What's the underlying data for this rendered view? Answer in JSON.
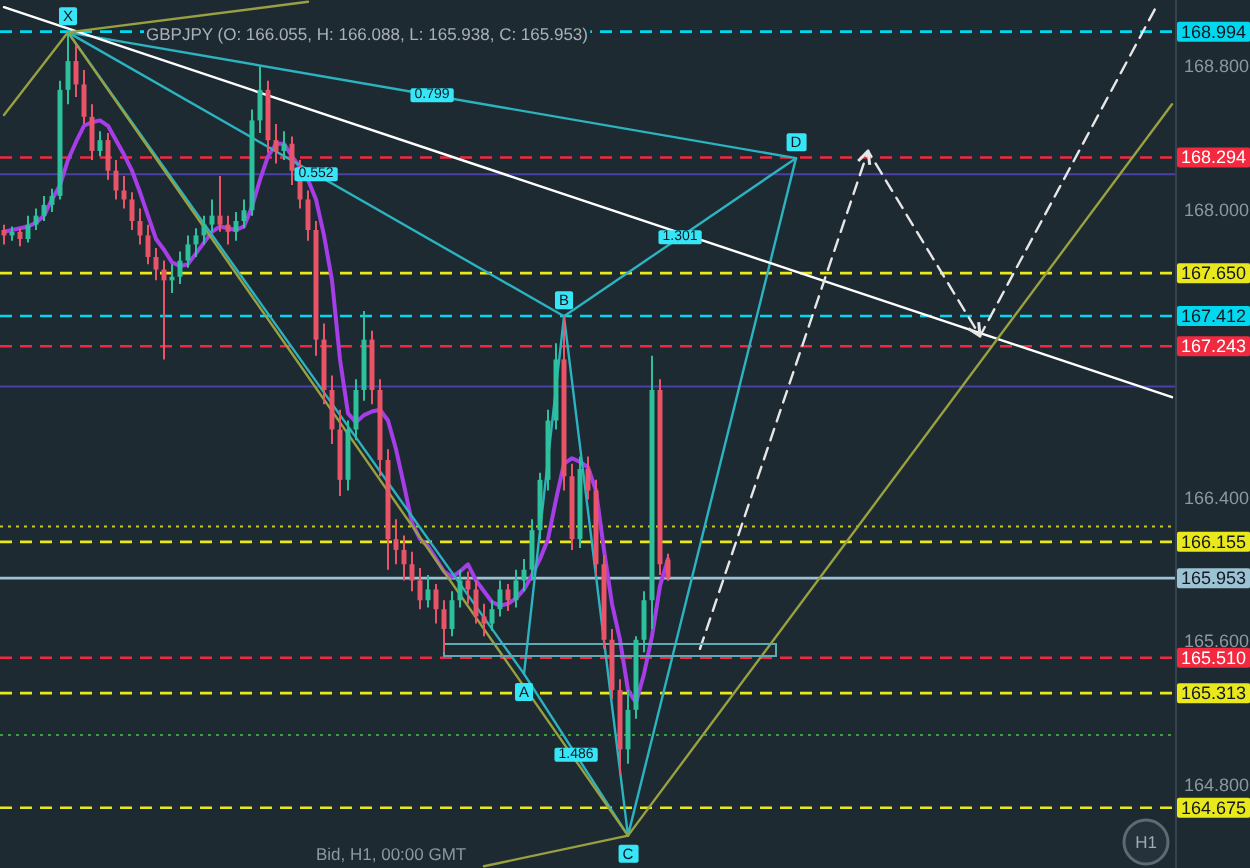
{
  "chart_data": {
    "type": "candlestick",
    "title": "GBPJPY (O: 166.055, H: 166.088, L: 165.938, C: 165.953)",
    "categories": [
      null,
      null,
      null,
      null,
      null,
      null,
      null,
      null,
      null,
      null,
      null,
      null,
      null,
      null,
      null,
      null,
      null,
      null,
      null,
      null,
      null,
      null,
      null,
      null,
      null,
      null,
      null,
      null,
      null,
      null,
      null,
      null,
      null,
      null,
      null,
      null,
      null,
      null,
      null,
      null,
      null,
      null,
      null,
      null,
      null,
      null,
      null,
      null,
      null,
      null,
      null,
      null,
      null,
      null,
      null,
      null,
      null,
      null,
      null,
      null,
      null,
      null,
      null,
      null,
      null,
      null,
      null,
      null,
      null,
      null,
      null,
      null,
      null,
      null,
      null,
      null,
      null,
      null,
      null,
      null,
      null,
      null,
      null,
      null,
      null,
      null,
      null,
      null,
      null,
      null,
      null,
      null,
      null,
      null,
      null,
      null,
      null,
      null,
      null,
      null,
      null,
      null,
      null,
      null,
      null,
      null,
      null,
      null,
      null,
      null,
      null,
      null,
      null,
      null,
      null,
      null,
      null,
      null,
      null,
      null,
      null,
      null,
      null,
      null,
      null,
      null,
      null,
      null,
      null,
      null,
      null,
      null,
      null,
      null,
      null,
      null,
      null,
      null,
      null,
      null,
      null,
      null,
      null,
      null,
      null,
      null,
      null
    ],
    "ohlc": [
      [
        167.89,
        167.92,
        167.81,
        167.86
      ],
      [
        167.86,
        167.91,
        167.83,
        167.88
      ],
      [
        167.88,
        167.9,
        167.8,
        167.84
      ],
      [
        167.84,
        167.97,
        167.82,
        167.92
      ],
      [
        167.92,
        168.01,
        167.89,
        167.97
      ],
      [
        167.97,
        168.08,
        167.94,
        168.03
      ],
      [
        168.03,
        168.12,
        167.99,
        168.08
      ],
      [
        168.08,
        168.72,
        168.06,
        168.67
      ],
      [
        168.67,
        168.99,
        168.59,
        168.83
      ],
      [
        168.83,
        168.92,
        168.63,
        168.7
      ],
      [
        168.7,
        168.78,
        168.48,
        168.52
      ],
      [
        168.52,
        168.59,
        168.28,
        168.33
      ],
      [
        168.33,
        168.44,
        168.3,
        168.39
      ],
      [
        168.39,
        168.43,
        168.17,
        168.22
      ],
      [
        168.22,
        168.28,
        168.06,
        168.11
      ],
      [
        168.11,
        168.19,
        168.01,
        168.06
      ],
      [
        168.06,
        168.1,
        167.89,
        167.94
      ],
      [
        167.94,
        168.01,
        167.81,
        167.86
      ],
      [
        167.86,
        167.92,
        167.7,
        167.74
      ],
      [
        167.74,
        167.79,
        167.61,
        167.67
      ],
      [
        167.67,
        167.72,
        167.17,
        167.61
      ],
      [
        167.61,
        167.7,
        167.54,
        167.63
      ],
      [
        167.63,
        167.77,
        167.59,
        167.72
      ],
      [
        167.72,
        167.86,
        167.68,
        167.81
      ],
      [
        167.81,
        167.9,
        167.74,
        167.86
      ],
      [
        167.86,
        167.97,
        167.81,
        167.92
      ],
      [
        167.92,
        168.06,
        167.88,
        167.97
      ],
      [
        167.97,
        168.19,
        167.88,
        167.92
      ],
      [
        167.92,
        167.97,
        167.81,
        167.88
      ],
      [
        167.88,
        167.99,
        167.83,
        167.94
      ],
      [
        167.94,
        168.06,
        167.9,
        168.0
      ],
      [
        168.0,
        168.56,
        167.97,
        168.5
      ],
      [
        168.5,
        168.8,
        168.43,
        168.67
      ],
      [
        168.67,
        168.72,
        168.32,
        168.39
      ],
      [
        168.39,
        168.48,
        168.26,
        168.33
      ],
      [
        168.33,
        168.44,
        168.28,
        168.37
      ],
      [
        168.37,
        168.41,
        168.14,
        168.22
      ],
      [
        168.22,
        168.28,
        168.01,
        168.06
      ],
      [
        168.06,
        168.11,
        167.83,
        167.89
      ],
      [
        167.89,
        167.94,
        167.19,
        167.28
      ],
      [
        167.28,
        167.37,
        166.92,
        167.0
      ],
      [
        167.0,
        167.08,
        166.7,
        166.78
      ],
      [
        166.78,
        166.89,
        166.41,
        166.5
      ],
      [
        166.5,
        166.83,
        166.44,
        166.78
      ],
      [
        166.78,
        167.06,
        166.72,
        167.0
      ],
      [
        167.0,
        167.44,
        166.94,
        167.28
      ],
      [
        167.28,
        167.33,
        166.92,
        167.0
      ],
      [
        167.0,
        167.06,
        166.52,
        166.61
      ],
      [
        166.61,
        166.67,
        166.0,
        166.17
      ],
      [
        166.17,
        166.28,
        166.03,
        166.11
      ],
      [
        166.11,
        166.19,
        165.94,
        166.03
      ],
      [
        166.03,
        166.1,
        165.88,
        165.94
      ],
      [
        165.94,
        166.01,
        165.78,
        165.83
      ],
      [
        165.83,
        165.97,
        165.79,
        165.89
      ],
      [
        165.89,
        165.92,
        165.7,
        165.78
      ],
      [
        165.78,
        165.83,
        165.54,
        165.67
      ],
      [
        165.67,
        165.88,
        165.63,
        165.83
      ],
      [
        165.83,
        166.0,
        165.79,
        165.94
      ],
      [
        165.94,
        165.99,
        165.81,
        165.89
      ],
      [
        165.89,
        165.94,
        165.7,
        165.74
      ],
      [
        165.74,
        165.81,
        165.63,
        165.7
      ],
      [
        165.7,
        165.83,
        165.66,
        165.78
      ],
      [
        165.78,
        165.94,
        165.74,
        165.89
      ],
      [
        165.89,
        165.92,
        165.77,
        165.83
      ],
      [
        165.83,
        166.0,
        165.79,
        165.94
      ],
      [
        165.94,
        166.06,
        165.88,
        166.0
      ],
      [
        166.0,
        166.28,
        165.94,
        166.22
      ],
      [
        166.22,
        166.54,
        166.17,
        166.5
      ],
      [
        166.5,
        166.89,
        166.44,
        166.83
      ],
      [
        166.83,
        167.26,
        166.78,
        167.17
      ],
      [
        167.17,
        167.41,
        166.44,
        166.52
      ],
      [
        166.52,
        166.59,
        166.11,
        166.17
      ],
      [
        166.17,
        166.63,
        166.12,
        166.56
      ],
      [
        166.56,
        166.63,
        166.39,
        166.44
      ],
      [
        166.44,
        166.5,
        165.97,
        166.03
      ],
      [
        166.03,
        166.08,
        165.56,
        165.61
      ],
      [
        165.61,
        165.67,
        165.28,
        165.33
      ],
      [
        165.33,
        165.39,
        164.86,
        165.0
      ],
      [
        165.0,
        165.33,
        164.92,
        165.22
      ],
      [
        165.22,
        165.63,
        165.17,
        165.61
      ],
      [
        165.61,
        165.88,
        165.54,
        165.83
      ],
      [
        165.83,
        167.19,
        165.67,
        167.0
      ],
      [
        167.0,
        167.06,
        165.97,
        166.03
      ],
      [
        166.055,
        166.088,
        165.938,
        165.953
      ],
      null,
      null,
      null,
      null,
      null,
      null,
      null,
      null,
      null,
      null,
      null,
      null,
      null,
      null,
      null,
      null,
      null,
      null,
      null,
      null,
      null,
      null,
      null,
      null,
      null,
      null,
      null,
      null,
      null,
      null,
      null,
      null,
      null,
      null,
      null,
      null,
      null,
      null,
      null,
      null,
      null,
      null,
      null,
      null,
      null,
      null,
      null,
      null,
      null,
      null,
      null,
      null,
      null,
      null,
      null,
      null,
      null,
      null,
      null,
      null,
      null,
      null,
      null
    ],
    "series": [
      {
        "type": "line",
        "color": "#a63ee8",
        "values": [
          167.88,
          167.89,
          167.9,
          167.91,
          167.93,
          167.97,
          168.06,
          168.14,
          168.28,
          168.38,
          168.47,
          168.49,
          168.5,
          168.47,
          168.39,
          168.31,
          168.22,
          168.1,
          167.97,
          167.84,
          167.78,
          167.71,
          167.69,
          167.7,
          167.76,
          167.82,
          167.88,
          167.91,
          167.9,
          167.89,
          167.91,
          168.02,
          168.17,
          168.3,
          168.37,
          168.37,
          168.3,
          168.24,
          168.17,
          168.06,
          167.86,
          167.61,
          167.17,
          166.87,
          166.82,
          166.86,
          166.88,
          166.89,
          166.83,
          166.67,
          166.47,
          166.26,
          166.17,
          166.13,
          166.06,
          165.99,
          165.96,
          165.99,
          166.03,
          165.94,
          165.88,
          165.82,
          165.8,
          165.81,
          165.84,
          165.89,
          165.97,
          166.06,
          166.17,
          166.39,
          166.59,
          166.62,
          166.6,
          166.57,
          166.44,
          166.11,
          165.81,
          165.61,
          165.33,
          165.26,
          165.42,
          165.63,
          165.91,
          166.06,
          null,
          null,
          null,
          null,
          null,
          null,
          null,
          null,
          null,
          null,
          null,
          null,
          null,
          null,
          null,
          null,
          null,
          null,
          null,
          null,
          null,
          null,
          null,
          null,
          null,
          null,
          null,
          null,
          null,
          null,
          null,
          null,
          null,
          null,
          null,
          null,
          null,
          null,
          null,
          null,
          null,
          null,
          null,
          null,
          null,
          null,
          null,
          null,
          null,
          null,
          null,
          null,
          null,
          null,
          null,
          null,
          null,
          null,
          null,
          null,
          null,
          null,
          null
        ]
      },
      {
        "type": "line",
        "color": "#2bb3c0",
        "values": [
          null,
          null,
          null,
          null,
          null,
          null,
          null,
          null,
          168.99,
          null,
          null,
          null,
          null,
          null,
          null,
          null,
          null,
          null,
          null,
          null,
          null,
          null,
          null,
          null,
          null,
          null,
          null,
          null,
          null,
          null,
          null,
          null,
          null,
          null,
          null,
          null,
          null,
          null,
          null,
          null,
          null,
          null,
          null,
          null,
          null,
          null,
          null,
          null,
          null,
          null,
          null,
          null,
          null,
          null,
          null,
          null,
          null,
          null,
          null,
          null,
          null,
          null,
          null,
          null,
          null,
          165.42,
          null,
          null,
          null,
          null,
          167.41,
          null,
          null,
          null,
          null,
          null,
          null,
          null,
          164.52,
          null,
          null,
          null,
          null,
          null,
          null,
          null,
          null,
          null,
          null,
          null,
          null,
          null,
          null,
          null,
          null,
          null,
          null,
          null,
          null,
          168.29,
          null,
          null,
          null,
          null,
          null,
          null,
          null,
          null,
          null,
          null,
          null,
          null,
          null,
          null,
          null,
          null,
          null,
          null,
          null,
          null,
          null,
          null,
          null,
          null,
          null,
          null,
          null,
          null,
          null,
          null,
          null,
          null,
          null,
          null,
          null,
          null,
          null,
          null,
          null,
          null,
          null,
          null,
          null,
          null,
          null,
          null,
          null
        ]
      },
      {
        "type": "line",
        "color": "#2bb3c0",
        "values": [
          null,
          null,
          null,
          null,
          null,
          null,
          null,
          null,
          168.99,
          null,
          null,
          null,
          null,
          null,
          null,
          null,
          null,
          null,
          null,
          null,
          null,
          null,
          null,
          null,
          null,
          null,
          null,
          null,
          null,
          null,
          null,
          null,
          null,
          null,
          null,
          null,
          null,
          null,
          null,
          null,
          null,
          null,
          null,
          null,
          null,
          null,
          null,
          null,
          null,
          null,
          null,
          null,
          null,
          null,
          null,
          null,
          null,
          null,
          null,
          null,
          null,
          null,
          null,
          null,
          null,
          null,
          null,
          null,
          null,
          null,
          167.41,
          null,
          null,
          null,
          null,
          null,
          null,
          null,
          null,
          null,
          null,
          null,
          null,
          null,
          null,
          null,
          null,
          null,
          null,
          null,
          null,
          null,
          null,
          null,
          null,
          null,
          null,
          null,
          null,
          168.29,
          null,
          null,
          null,
          null,
          null,
          null,
          null,
          null,
          null,
          null,
          null,
          null,
          null,
          null,
          null,
          null,
          null,
          null,
          null,
          null,
          null,
          null,
          null,
          null,
          null,
          null,
          null,
          null,
          null,
          null,
          null,
          null,
          null,
          null,
          null,
          null,
          null,
          null,
          null,
          null,
          null,
          null,
          null,
          null,
          null,
          null,
          null
        ]
      },
      {
        "type": "line",
        "color": "#2bb3c0",
        "values": [
          null,
          null,
          null,
          null,
          null,
          null,
          null,
          null,
          168.99,
          null,
          null,
          null,
          null,
          null,
          null,
          null,
          null,
          null,
          null,
          null,
          null,
          null,
          null,
          null,
          null,
          null,
          null,
          null,
          null,
          null,
          null,
          null,
          null,
          null,
          null,
          null,
          null,
          null,
          null,
          null,
          null,
          null,
          null,
          null,
          null,
          null,
          null,
          null,
          null,
          null,
          null,
          null,
          null,
          null,
          null,
          null,
          null,
          null,
          null,
          null,
          null,
          null,
          null,
          null,
          null,
          null,
          null,
          null,
          null,
          null,
          null,
          null,
          null,
          null,
          null,
          null,
          null,
          null,
          null,
          null,
          null,
          null,
          null,
          null,
          null,
          null,
          null,
          null,
          null,
          null,
          null,
          null,
          null,
          null,
          null,
          null,
          null,
          null,
          null,
          168.29,
          null,
          null,
          null,
          null,
          null,
          null,
          null,
          null,
          null,
          null,
          null,
          null,
          null,
          null,
          null,
          null,
          null,
          null,
          null,
          null,
          null,
          null,
          null,
          null,
          null,
          null,
          null,
          null,
          null,
          null,
          null,
          null,
          null,
          null,
          null,
          null,
          null,
          null,
          null,
          null,
          null,
          null,
          null,
          null,
          null,
          null,
          null
        ]
      },
      {
        "type": "line",
        "color": "#2bb3c0",
        "values": [
          null,
          null,
          null,
          null,
          null,
          null,
          null,
          null,
          null,
          null,
          null,
          null,
          null,
          null,
          null,
          null,
          null,
          null,
          null,
          null,
          null,
          null,
          null,
          null,
          null,
          null,
          null,
          null,
          null,
          null,
          null,
          null,
          null,
          null,
          null,
          null,
          null,
          null,
          null,
          null,
          null,
          null,
          null,
          null,
          null,
          null,
          null,
          null,
          null,
          null,
          null,
          null,
          null,
          null,
          null,
          null,
          null,
          null,
          null,
          null,
          null,
          null,
          null,
          null,
          null,
          165.42,
          null,
          null,
          null,
          null,
          null,
          null,
          null,
          null,
          null,
          null,
          null,
          null,
          164.52,
          null,
          null,
          null,
          null,
          null,
          null,
          null,
          null,
          null,
          null,
          null,
          null,
          null,
          null,
          null,
          null,
          null,
          null,
          null,
          null,
          null,
          null,
          null,
          null,
          null,
          null,
          null,
          null,
          null,
          null,
          null,
          null,
          null,
          null,
          null,
          null,
          null,
          null,
          null,
          null,
          null,
          null,
          null,
          null,
          null,
          null,
          null,
          null,
          null,
          null,
          null,
          null,
          null,
          null,
          null,
          null,
          null,
          null,
          null,
          null,
          null,
          null,
          null,
          null,
          null,
          null,
          null,
          null
        ]
      },
      {
        "type": "line",
        "color": "#ffffff",
        "values": [
          169.13,
          null,
          null,
          null,
          null,
          null,
          null,
          null,
          null,
          null,
          null,
          null,
          null,
          null,
          null,
          null,
          null,
          null,
          null,
          null,
          null,
          null,
          null,
          null,
          null,
          null,
          null,
          null,
          null,
          null,
          null,
          null,
          null,
          null,
          null,
          null,
          null,
          null,
          null,
          null,
          null,
          null,
          null,
          null,
          null,
          null,
          null,
          null,
          null,
          null,
          null,
          null,
          null,
          null,
          null,
          null,
          null,
          null,
          null,
          null,
          null,
          null,
          null,
          null,
          null,
          null,
          null,
          null,
          null,
          null,
          null,
          null,
          null,
          null,
          null,
          null,
          null,
          null,
          null,
          null,
          null,
          null,
          null,
          null,
          null,
          null,
          null,
          null,
          null,
          null,
          null,
          null,
          null,
          null,
          null,
          null,
          null,
          null,
          null,
          null,
          null,
          null,
          null,
          null,
          null,
          null,
          null,
          null,
          null,
          null,
          null,
          null,
          null,
          null,
          null,
          null,
          null,
          null,
          null,
          null,
          null,
          null,
          null,
          null,
          null,
          null,
          null,
          null,
          null,
          null,
          null,
          null,
          null,
          null,
          null,
          null,
          null,
          null,
          null,
          null,
          null,
          null,
          null,
          null,
          null,
          null,
          166.96
        ]
      },
      {
        "type": "line",
        "color": "#98a040",
        "values": [
          168.53,
          null,
          null,
          null,
          null,
          null,
          null,
          null,
          168.99,
          null,
          null,
          null,
          null,
          null,
          null,
          null,
          null,
          null,
          null,
          null,
          null,
          null,
          null,
          null,
          null,
          null,
          null,
          null,
          null,
          null,
          null,
          null,
          null,
          null,
          null,
          null,
          null,
          null,
          169.16,
          null,
          null,
          null,
          null,
          null,
          null,
          null,
          null,
          null,
          null,
          null,
          null,
          null,
          null,
          null,
          null,
          null,
          null,
          null,
          null,
          null,
          null,
          null,
          null,
          null,
          null,
          null,
          null,
          null,
          null,
          null,
          null,
          null,
          null,
          null,
          null,
          null,
          null,
          null,
          null,
          null,
          null,
          null,
          null,
          null,
          null,
          null,
          null,
          null,
          null,
          null,
          null,
          null,
          null,
          null,
          null,
          null,
          null,
          null,
          null,
          null,
          null,
          null,
          null,
          null,
          null,
          null,
          null,
          null,
          null,
          null,
          null,
          null,
          null,
          null,
          null,
          null,
          null,
          null,
          null,
          null,
          null,
          null,
          null,
          null,
          null,
          null,
          null,
          null,
          null,
          null,
          null,
          null,
          null,
          null,
          null,
          null,
          null,
          null,
          null,
          null,
          null,
          null,
          null,
          null,
          null,
          null,
          null
        ]
      },
      {
        "type": "line",
        "color": "#98a040",
        "values": [
          null,
          null,
          null,
          null,
          null,
          null,
          null,
          null,
          168.99,
          null,
          null,
          null,
          null,
          null,
          null,
          null,
          null,
          null,
          null,
          null,
          null,
          null,
          null,
          null,
          null,
          null,
          null,
          null,
          null,
          null,
          null,
          null,
          null,
          null,
          null,
          null,
          null,
          null,
          null,
          null,
          null,
          null,
          null,
          null,
          null,
          null,
          null,
          null,
          null,
          null,
          null,
          null,
          null,
          null,
          null,
          null,
          null,
          null,
          null,
          null,
          null,
          null,
          null,
          null,
          null,
          null,
          null,
          null,
          null,
          null,
          null,
          null,
          null,
          null,
          null,
          null,
          null,
          null,
          164.52,
          null,
          null,
          null,
          null,
          null,
          null,
          null,
          null,
          null,
          null,
          null,
          null,
          null,
          null,
          null,
          null,
          null,
          null,
          null,
          null,
          null,
          null,
          null,
          null,
          null,
          null,
          null,
          null,
          null,
          null,
          null,
          null,
          null,
          null,
          null,
          null,
          null,
          null,
          null,
          null,
          null,
          null,
          null,
          null,
          null,
          null,
          null,
          null,
          null,
          null,
          null,
          null,
          null,
          null,
          null,
          null,
          null,
          null,
          null,
          null,
          null,
          null,
          null,
          null,
          null,
          null,
          null,
          null
        ]
      },
      {
        "type": "line",
        "color": "#98a040",
        "values": [
          null,
          null,
          null,
          null,
          null,
          null,
          null,
          null,
          null,
          null,
          null,
          null,
          null,
          null,
          null,
          null,
          null,
          null,
          null,
          null,
          null,
          null,
          null,
          null,
          null,
          null,
          null,
          null,
          null,
          null,
          null,
          null,
          null,
          null,
          null,
          null,
          null,
          null,
          null,
          null,
          null,
          null,
          null,
          null,
          null,
          null,
          null,
          null,
          null,
          null,
          null,
          null,
          null,
          null,
          null,
          null,
          null,
          null,
          null,
          null,
          164.35,
          null,
          null,
          null,
          null,
          null,
          null,
          null,
          null,
          null,
          null,
          null,
          null,
          null,
          null,
          null,
          null,
          null,
          164.52,
          null,
          null,
          null,
          null,
          null,
          null,
          null,
          null,
          null,
          null,
          null,
          null,
          null,
          null,
          null,
          null,
          null,
          null,
          null,
          null,
          null,
          null,
          null,
          null,
          null,
          null,
          null,
          null,
          null,
          null,
          null,
          null,
          null,
          null,
          null,
          null,
          null,
          null,
          null,
          null,
          null,
          null,
          null,
          null,
          null,
          null,
          null,
          null,
          null,
          null,
          null,
          null,
          null,
          null,
          null,
          null,
          null,
          null,
          null,
          null,
          null,
          null,
          null,
          null,
          null,
          null,
          null,
          168.59
        ]
      },
      {
        "type": "line",
        "color": "#e6e6e6",
        "line_style": "dashed",
        "values": [
          null,
          null,
          null,
          null,
          null,
          null,
          null,
          null,
          null,
          null,
          null,
          null,
          null,
          null,
          null,
          null,
          null,
          null,
          null,
          null,
          null,
          null,
          null,
          null,
          null,
          null,
          null,
          null,
          null,
          null,
          null,
          null,
          null,
          null,
          null,
          null,
          null,
          null,
          null,
          null,
          null,
          null,
          null,
          null,
          null,
          null,
          null,
          null,
          null,
          null,
          null,
          null,
          null,
          null,
          null,
          null,
          null,
          null,
          null,
          null,
          null,
          null,
          null,
          null,
          null,
          null,
          null,
          null,
          null,
          null,
          null,
          null,
          null,
          null,
          null,
          null,
          null,
          null,
          null,
          null,
          null,
          null,
          null,
          null,
          null,
          null,
          null,
          165.56,
          null,
          null,
          null,
          null,
          null,
          null,
          null,
          null,
          null,
          null,
          null,
          null,
          null,
          null,
          null,
          null,
          null,
          null,
          null,
          null,
          168.33,
          null,
          null,
          null,
          null,
          null,
          null,
          null,
          null,
          null,
          null,
          null,
          null,
          null,
          167.3,
          null,
          null,
          null,
          null,
          null,
          null,
          null,
          null,
          null,
          null,
          null,
          null,
          null,
          null,
          null,
          null,
          null,
          null,
          null,
          null,
          null,
          169.13,
          null,
          null
        ]
      }
    ],
    "ylim": [
      164.34,
      169.17
    ],
    "yticks": [
      {
        "value": 168.8,
        "label": "168.800"
      },
      {
        "value": 168.0,
        "label": "168.000"
      },
      {
        "value": 166.4,
        "label": "166.400"
      },
      {
        "value": 165.6,
        "label": "165.600"
      },
      {
        "value": 164.8,
        "label": "164.800"
      }
    ],
    "tick_labels": "y",
    "ref_lines": [
      {
        "axis": "y",
        "value": 168.994,
        "label": "168.994",
        "color": "#00d8f0",
        "line_style": "dashed"
      },
      {
        "axis": "y",
        "value": 168.294,
        "label": "168.294",
        "color": "#f2293f",
        "line_style": "dashed"
      },
      {
        "axis": "y",
        "value": 168.2,
        "color": "#4b3fa8",
        "line_style": "solid"
      },
      {
        "axis": "y",
        "value": 167.65,
        "label": "167.650",
        "color": "#e8e81c",
        "line_style": "dashed"
      },
      {
        "axis": "y",
        "value": 167.412,
        "label": "167.412",
        "color": "#00d8f0",
        "line_style": "dashed"
      },
      {
        "axis": "y",
        "value": 167.243,
        "label": "167.243",
        "color": "#f2293f",
        "line_style": "dashed"
      },
      {
        "axis": "y",
        "value": 167.02,
        "color": "#4b3fa8",
        "line_style": "solid"
      },
      {
        "axis": "y",
        "value": 166.24,
        "color": "#c9c927",
        "line_style": "dotted"
      },
      {
        "axis": "y",
        "value": 166.155,
        "label": "166.155",
        "color": "#e8e81c",
        "line_style": "dashed"
      },
      {
        "axis": "y",
        "value": 165.953,
        "label": "165.953",
        "color": "#9cc3d3",
        "line_style": "solid"
      },
      {
        "axis": "y",
        "value": 165.51,
        "label": "165.510",
        "color": "#f2293f",
        "line_style": "dashed"
      },
      {
        "axis": "y",
        "value": 165.313,
        "label": "165.313",
        "color": "#e8e81c",
        "line_style": "dashed"
      },
      {
        "axis": "y",
        "value": 165.08,
        "color": "#3f9f3f",
        "line_style": "dotted"
      },
      {
        "axis": "y",
        "value": 164.675,
        "label": "164.675",
        "color": "#e8e81c",
        "line_style": "dashed"
      }
    ],
    "annotations": [
      "X",
      "A",
      "B",
      "C",
      "D",
      "0.552",
      "0.799",
      "1.301",
      "1.486",
      "Bid, H1, 00:00 GMT",
      "H1"
    ]
  }
}
